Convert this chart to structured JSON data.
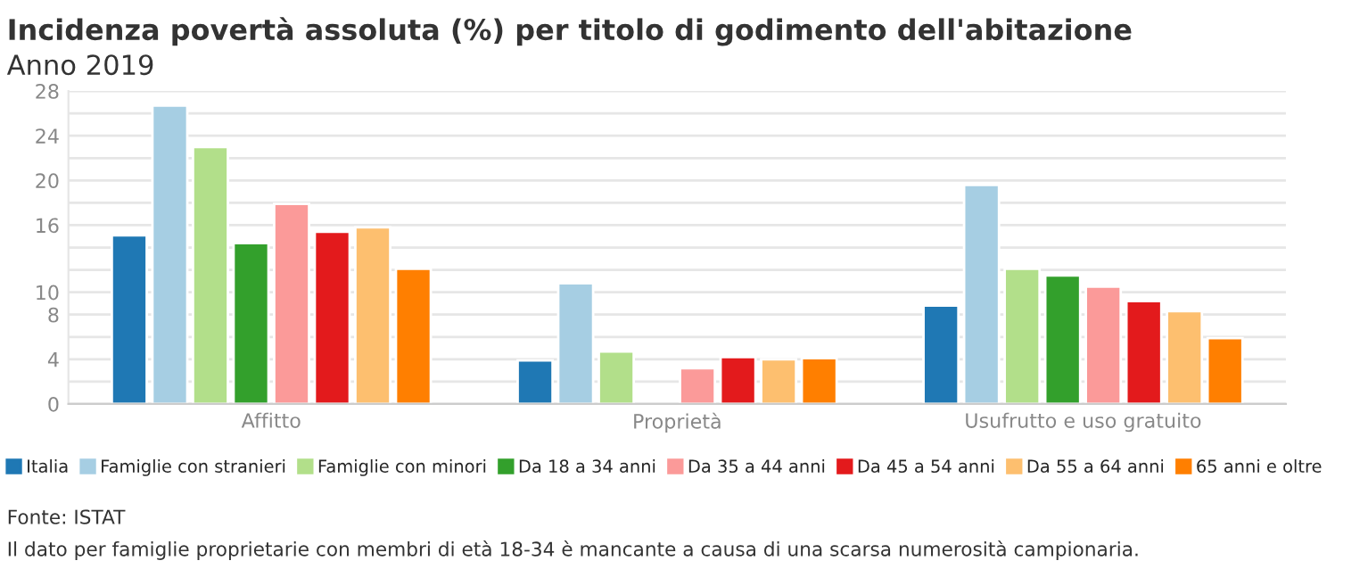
{
  "chart_data": {
    "type": "bar",
    "title": "Incidenza povertà assoluta (%) per titolo di godimento dell'abitazione",
    "subtitle": "Anno 2019",
    "categories": [
      "Affitto",
      "Proprietà",
      "Usufrutto e uso gratuito"
    ],
    "series": [
      {
        "name": "Italia",
        "color": "#1f78b4",
        "values": [
          15.1,
          3.9,
          8.8
        ]
      },
      {
        "name": "Famiglie con stranieri",
        "color": "#a6cee3",
        "values": [
          26.7,
          10.8,
          19.6
        ]
      },
      {
        "name": "Famiglie con minori",
        "color": "#b2df8a",
        "values": [
          23.0,
          4.7,
          12.1
        ]
      },
      {
        "name": "Da 18 a 34 anni",
        "color": "#33a02c",
        "values": [
          14.4,
          null,
          11.5
        ]
      },
      {
        "name": "Da 35 a 44 anni",
        "color": "#fb9a99",
        "values": [
          17.9,
          3.2,
          10.5
        ]
      },
      {
        "name": "Da 45 a 54 anni",
        "color": "#e31a1c",
        "values": [
          15.4,
          4.2,
          9.2
        ]
      },
      {
        "name": "Da 55 a 64 anni",
        "color": "#fdbf6f",
        "values": [
          15.8,
          4.0,
          8.3
        ]
      },
      {
        "name": "65 anni e oltre",
        "color": "#ff7f00",
        "values": [
          12.1,
          4.1,
          5.9
        ]
      }
    ],
    "ylim": [
      0,
      28
    ],
    "yticks": [
      0,
      {
        "value": 2,
        "label": null
      },
      4,
      {
        "value": 6,
        "label": null
      },
      8,
      10,
      {
        "value": 12,
        "label": null
      },
      {
        "value": 14,
        "label": null
      },
      16,
      {
        "value": 18,
        "label": null
      },
      20,
      {
        "value": 22,
        "label": null
      },
      24,
      {
        "value": 26,
        "label": null
      },
      28
    ],
    "grid": "y",
    "legend": "bottom",
    "annotations": [
      "Fonte: ISTAT",
      "Il dato per famiglie proprietarie con membri di età 18-34 è mancante a causa di una scarsa numerosità campionaria."
    ]
  }
}
